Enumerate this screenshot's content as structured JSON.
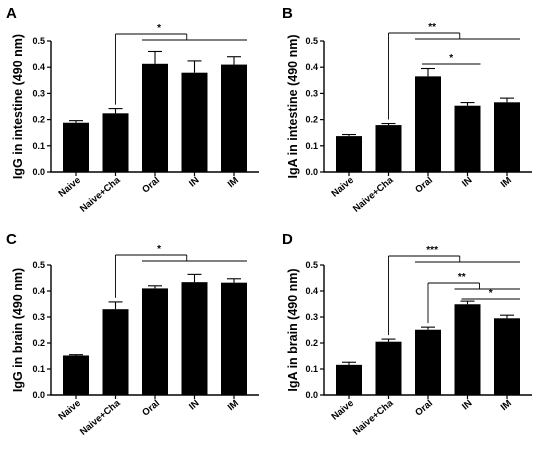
{
  "chart_data": [
    {
      "type": "bar",
      "panel": "A",
      "categories": [
        "Naive",
        "Naive+Cha",
        "Oral",
        "IN",
        "IM"
      ],
      "values": [
        0.188,
        0.224,
        0.413,
        0.379,
        0.41
      ],
      "errors": [
        0.008,
        0.018,
        0.047,
        0.045,
        0.03
      ],
      "ylabel": "IgG in intestine (490 nm)",
      "ylim": [
        0,
        0.5
      ],
      "yticks": [
        "0.0",
        "0.1",
        "0.2",
        "0.3",
        "0.4",
        "0.5"
      ],
      "grid": false,
      "significance": [
        {
          "from": "Naive+Cha",
          "to": [
            "Oral",
            "IN",
            "IM"
          ],
          "label": "*"
        }
      ]
    },
    {
      "type": "bar",
      "panel": "B",
      "categories": [
        "Naive",
        "Naive+Cha",
        "Oral",
        "IN",
        "IM"
      ],
      "values": [
        0.137,
        0.179,
        0.365,
        0.253,
        0.266
      ],
      "errors": [
        0.006,
        0.006,
        0.03,
        0.012,
        0.016
      ],
      "ylabel": "IgA in intestine (490 nm)",
      "ylim": [
        0,
        0.5
      ],
      "yticks": [
        "0.0",
        "0.1",
        "0.2",
        "0.3",
        "0.4",
        "0.5"
      ],
      "grid": false,
      "significance": [
        {
          "from": "Naive+Cha",
          "to": [
            "Oral",
            "IN",
            "IM"
          ],
          "label": "**"
        },
        {
          "from": "Oral",
          "to": [
            "IN"
          ],
          "label": "*"
        }
      ]
    },
    {
      "type": "bar",
      "panel": "C",
      "categories": [
        "Naive",
        "Naive+Cha",
        "Oral",
        "IN",
        "IM"
      ],
      "values": [
        0.152,
        0.33,
        0.41,
        0.434,
        0.432
      ],
      "errors": [
        0.003,
        0.028,
        0.01,
        0.03,
        0.015
      ],
      "ylabel": "IgG in brain (490 nm)",
      "ylim": [
        0,
        0.5
      ],
      "yticks": [
        "0.0",
        "0.1",
        "0.2",
        "0.3",
        "0.4",
        "0.5"
      ],
      "grid": false,
      "significance": [
        {
          "from": "Naive+Cha",
          "to": [
            "Oral",
            "IN",
            "IM"
          ],
          "label": "*"
        }
      ]
    },
    {
      "type": "bar",
      "panel": "D",
      "categories": [
        "Naive",
        "Naive+Cha",
        "Oral",
        "IN",
        "IM"
      ],
      "values": [
        0.116,
        0.205,
        0.251,
        0.349,
        0.295
      ],
      "errors": [
        0.01,
        0.01,
        0.01,
        0.012,
        0.012
      ],
      "ylabel": "IgA in brain (490 nm)",
      "ylim": [
        0,
        0.5
      ],
      "yticks": [
        "0.0",
        "0.1",
        "0.2",
        "0.3",
        "0.4",
        "0.5"
      ],
      "grid": false,
      "significance": [
        {
          "from": "Naive+Cha",
          "to": [
            "Oral",
            "IN",
            "IM"
          ],
          "label": "***"
        },
        {
          "from": "Oral",
          "to": [
            "IN",
            "IM"
          ],
          "label": "**"
        },
        {
          "from": "IN",
          "to": [
            "IM"
          ],
          "label": "*"
        }
      ]
    }
  ],
  "colors": {
    "bar": "#000000",
    "axis": "#000000",
    "background": "#ffffff"
  }
}
